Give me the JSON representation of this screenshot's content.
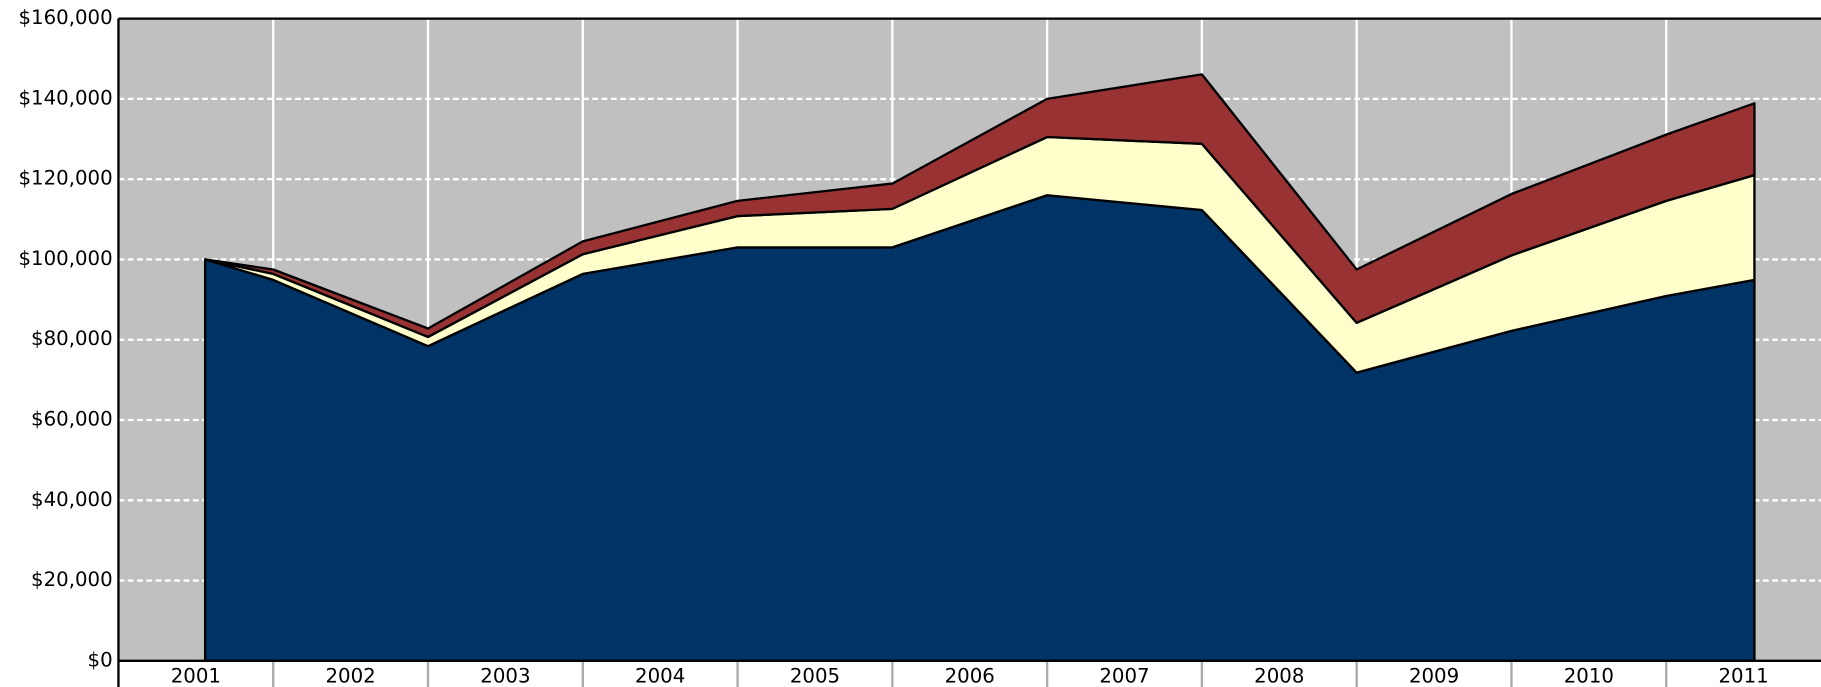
{
  "chart_data": {
    "type": "stacked-area",
    "x": [
      2001.56,
      2002,
      2003,
      2004,
      2005,
      2006,
      2007,
      2008,
      2009,
      2010,
      2011,
      2011.57
    ],
    "series": [
      {
        "color": "#003366",
        "values": [
          100000,
          94900,
          78400,
          96400,
          103000,
          103000,
          116000,
          112300,
          71800,
          82200,
          90900,
          94900
        ]
      },
      {
        "color": "#ffffcc",
        "values": [
          0,
          1500,
          2300,
          4900,
          7800,
          9600,
          14500,
          16500,
          12400,
          18800,
          23700,
          26100
        ]
      },
      {
        "color": "#993333",
        "values": [
          0,
          1100,
          2100,
          3200,
          3800,
          6300,
          9500,
          17300,
          13300,
          15300,
          16500,
          17900
        ]
      }
    ],
    "xlim": [
      2001,
      2012
    ],
    "xticks": [
      2001,
      2002,
      2003,
      2004,
      2005,
      2006,
      2007,
      2008,
      2009,
      2010,
      2011
    ],
    "ylim": [
      0,
      160000
    ],
    "yticks": [
      {
        "value": 0,
        "label": "$0"
      },
      {
        "value": 20000,
        "label": "$20,000"
      },
      {
        "value": 40000,
        "label": "$40,000"
      },
      {
        "value": 60000,
        "label": "$60,000"
      },
      {
        "value": 80000,
        "label": "$80,000"
      },
      {
        "value": 100000,
        "label": "$100,000"
      },
      {
        "value": 120000,
        "label": "$120,000"
      },
      {
        "value": 140000,
        "label": "$140,000"
      },
      {
        "value": 160000,
        "label": "$160,000"
      }
    ],
    "grid": true,
    "background": "#c0c0c0"
  }
}
